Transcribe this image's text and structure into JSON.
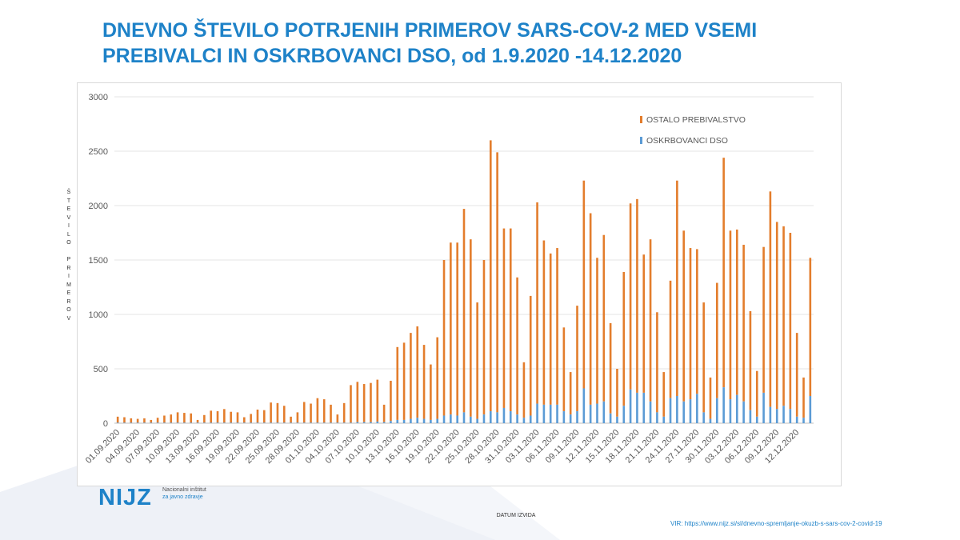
{
  "colors": {
    "title": "#1e82c8",
    "ostalo": "#e37d2c",
    "dso": "#5b9bd5",
    "grid": "#e4e4e4"
  },
  "title_line1": "DNEVNO ŠTEVILO POTRJENIH PRIMEROV SARS-COV-2 MED VSEMI",
  "title_line2": "PREBIVALCI IN OSKRBOVANCI DSO, od 1.9.2020 -14.12.2020",
  "y_axis_label_letters": [
    "Š",
    "T",
    "E",
    "V",
    "I",
    "L",
    "O",
    " ",
    "P",
    "R",
    "I",
    "M",
    "E",
    "R",
    "O",
    "V"
  ],
  "x_axis_label": "DATUM IZVIDA",
  "logo": {
    "name": "NIJZ",
    "line1": "Nacionalni inštitut",
    "line2": "za javno zdravje"
  },
  "source": "VIR: https://www.nijz.si/sl/dnevno-spremljanje-okuzb-s-sars-cov-2-covid-19",
  "chart_data": {
    "type": "bar",
    "stacked": true,
    "ylim": [
      0,
      3000
    ],
    "yticks": [
      0,
      500,
      1000,
      1500,
      2000,
      2500,
      3000
    ],
    "grid": true,
    "legend_position": "top-right",
    "x_tick_labels": [
      "01.09.2020",
      "04.09.2020",
      "07.09.2020",
      "10.09.2020",
      "13.09.2020",
      "16.09.2020",
      "19.09.2020",
      "22.09.2020",
      "25.09.2020",
      "28.09.2020",
      "01.10.2020",
      "04.10.2020",
      "07.10.2020",
      "10.10.2020",
      "13.10.2020",
      "16.10.2020",
      "19.10.2020",
      "22.10.2020",
      "25.10.2020",
      "28.10.2020",
      "31.10.2020",
      "03.11.2020",
      "06.11.2020",
      "09.11.2020",
      "12.11.2020",
      "15.11.2020",
      "18.11.2020",
      "21.11.2020",
      "24.11.2020",
      "27.11.2020",
      "30.11.2020",
      "03.12.2020",
      "06.12.2020",
      "09.12.2020",
      "12.12.2020"
    ],
    "series": [
      {
        "name": "OSTALO PREBIVALSTVO",
        "total_values": [
          60,
          55,
          45,
          40,
          45,
          30,
          50,
          70,
          80,
          100,
          95,
          90,
          30,
          75,
          115,
          110,
          130,
          105,
          100,
          55,
          85,
          125,
          120,
          190,
          185,
          160,
          60,
          100,
          195,
          180,
          230,
          220,
          170,
          80,
          185,
          350,
          380,
          360,
          370,
          400,
          170,
          390,
          700,
          740,
          830,
          890,
          720,
          540,
          790,
          1500,
          1660,
          1660,
          1970,
          1690,
          1110,
          1500,
          2600,
          2490,
          1790,
          1790,
          1340,
          560,
          1170,
          2030,
          1680,
          1560,
          1610,
          880,
          470,
          1080,
          2230,
          1930,
          1520,
          1730,
          920,
          500,
          1390,
          2020,
          2060,
          1550,
          1690,
          1020,
          470,
          1310,
          2230,
          1770,
          1610,
          1600,
          1110,
          420,
          1290,
          2440,
          1770,
          1780,
          1640,
          1030,
          480,
          1620,
          2130,
          1850,
          1810,
          1750,
          830,
          420,
          1520
        ]
      },
      {
        "name": "OSKRBOVANCI DSO",
        "values": [
          5,
          5,
          5,
          5,
          5,
          5,
          5,
          5,
          5,
          5,
          5,
          5,
          5,
          5,
          5,
          5,
          5,
          5,
          5,
          5,
          5,
          5,
          5,
          5,
          5,
          5,
          5,
          5,
          5,
          5,
          5,
          5,
          5,
          5,
          5,
          5,
          10,
          10,
          10,
          15,
          10,
          20,
          30,
          30,
          40,
          50,
          40,
          30,
          40,
          70,
          80,
          70,
          100,
          60,
          40,
          80,
          110,
          100,
          140,
          110,
          80,
          50,
          70,
          180,
          170,
          170,
          170,
          110,
          80,
          110,
          320,
          170,
          180,
          200,
          90,
          60,
          160,
          310,
          280,
          280,
          200,
          100,
          60,
          230,
          250,
          200,
          220,
          270,
          100,
          40,
          230,
          330,
          220,
          260,
          200,
          120,
          60,
          280,
          150,
          130,
          160,
          130,
          60,
          50,
          250
        ]
      }
    ]
  }
}
